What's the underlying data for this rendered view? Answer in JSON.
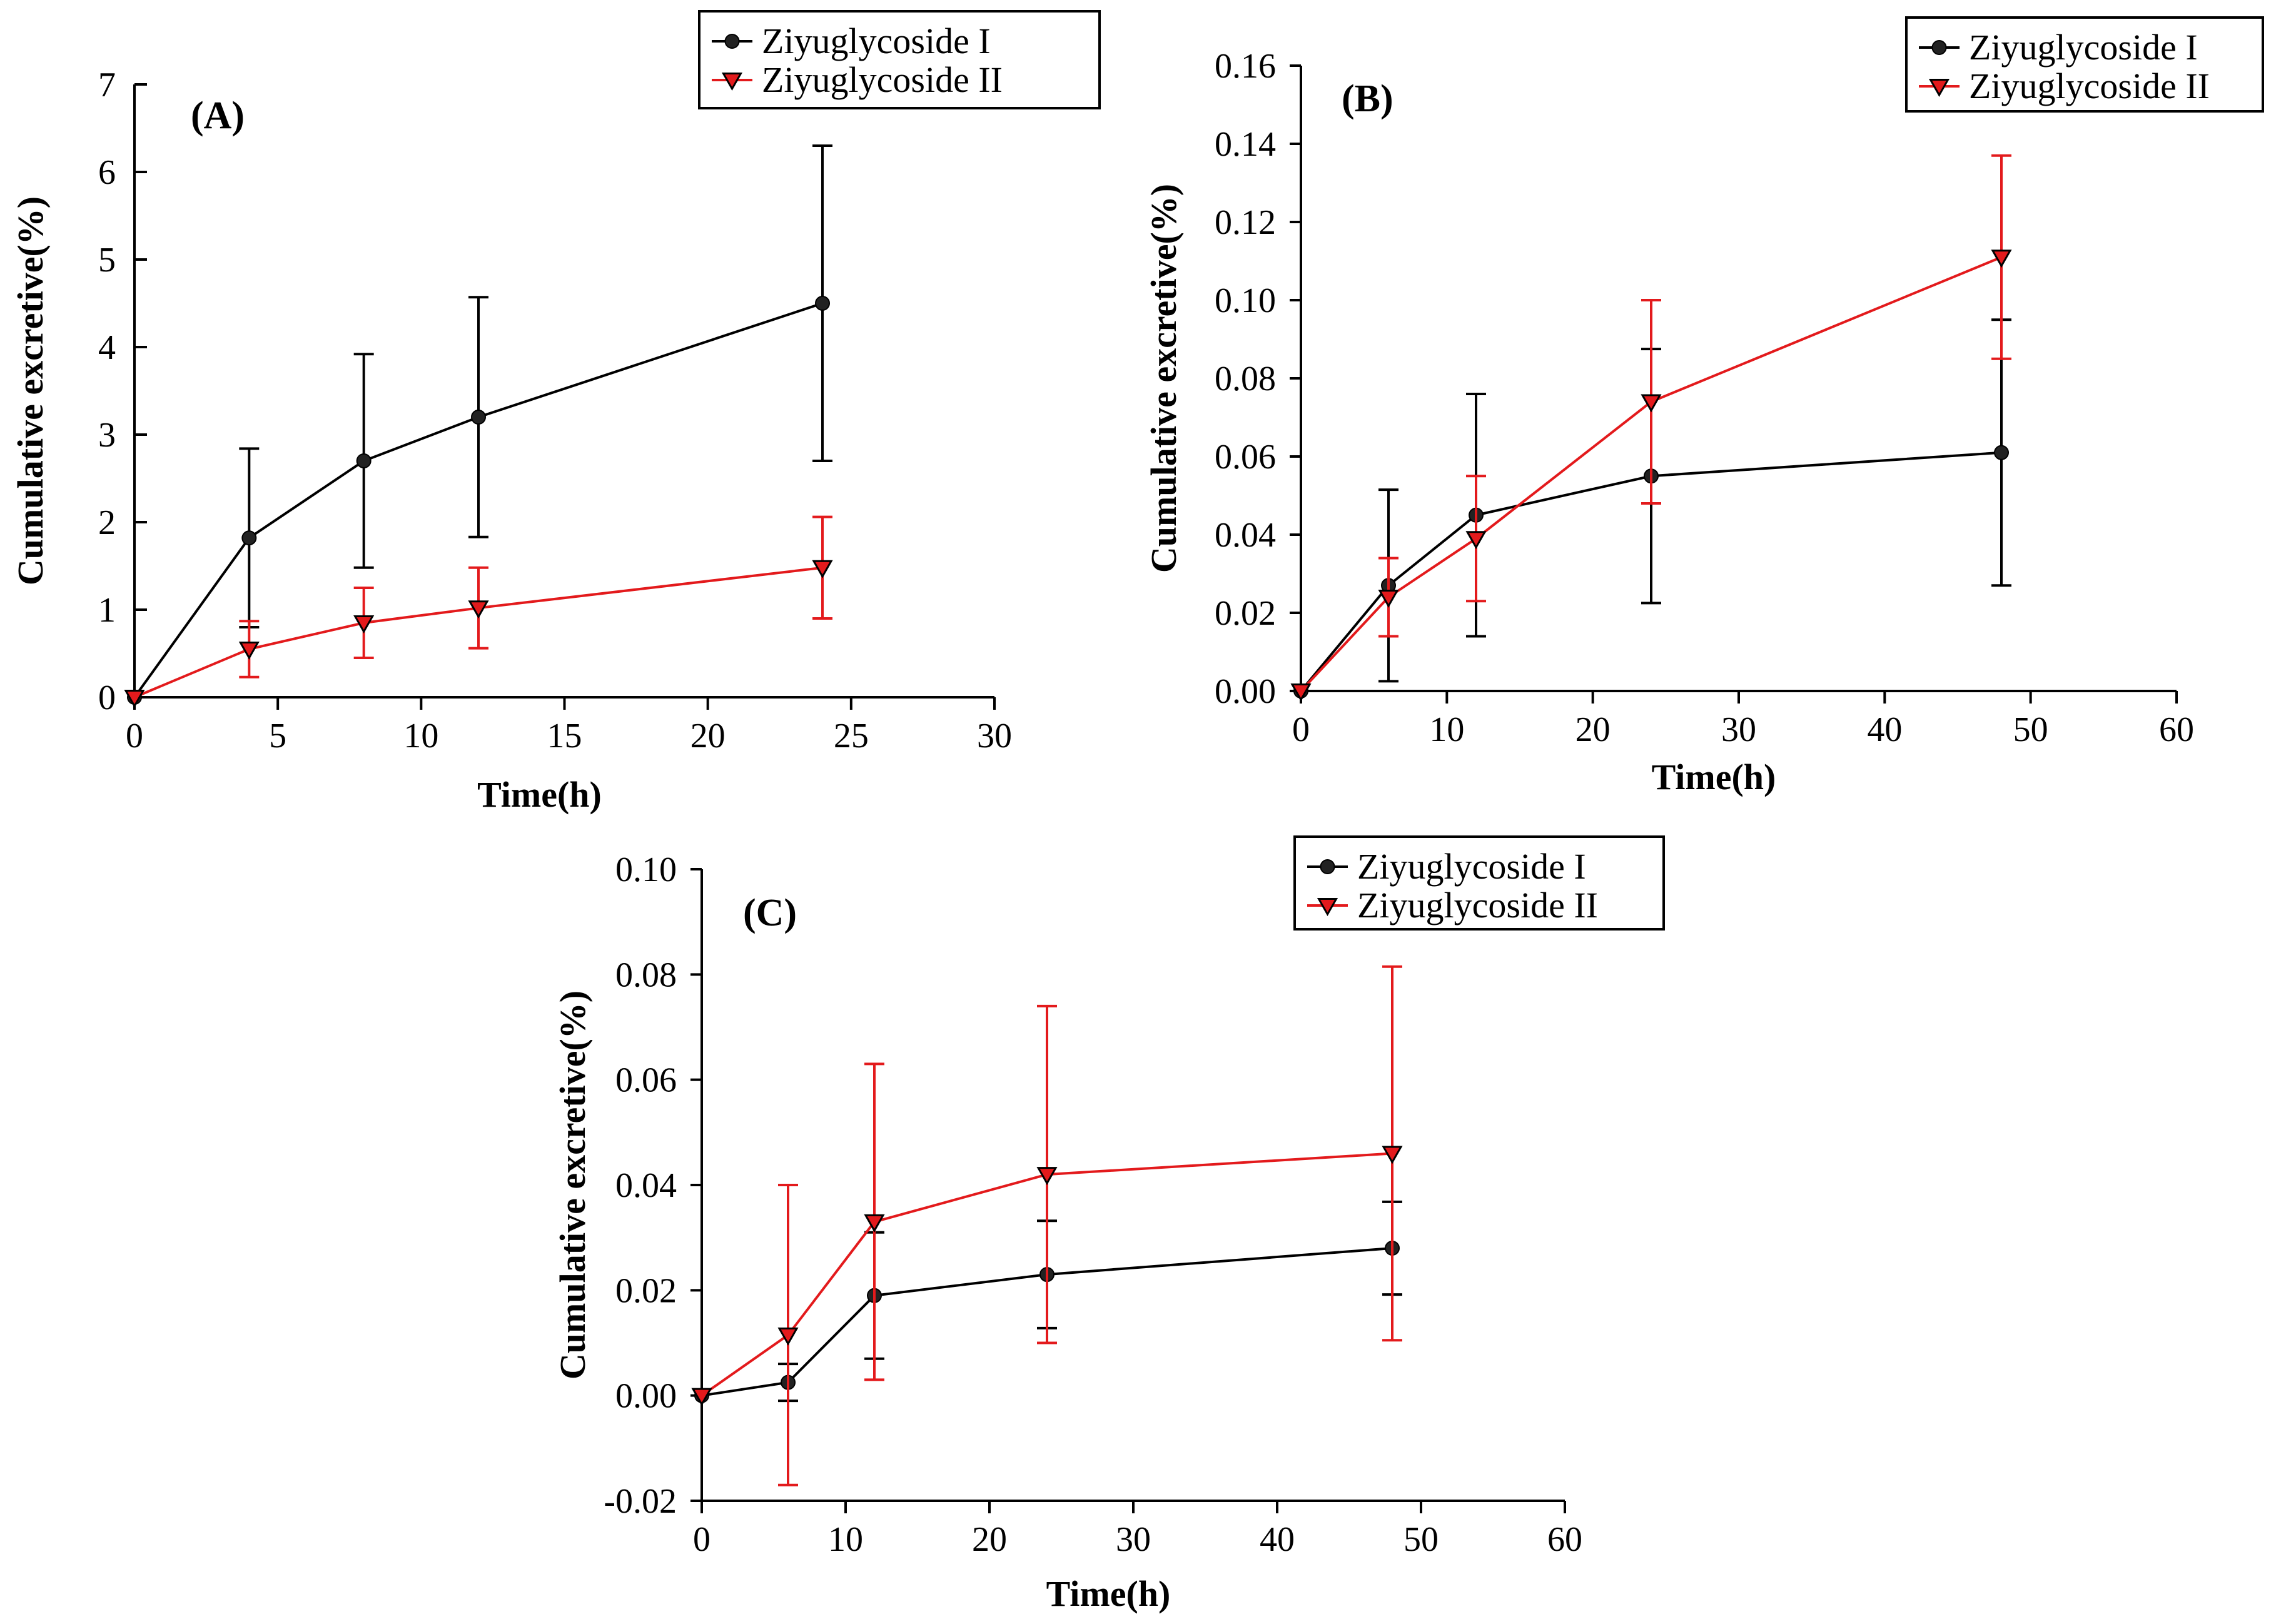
{
  "colors": {
    "series1": "#000000",
    "series2": "#e31a1c"
  },
  "chart_data": [
    {
      "type": "line",
      "panel_label": "(A)",
      "xlabel": "Time(h)",
      "ylabel": "Cumulative excretive(%)",
      "xlim": [
        0,
        30
      ],
      "ylim": [
        0,
        7
      ],
      "xticks": [
        0,
        5,
        10,
        15,
        20,
        25,
        30
      ],
      "yticks": [
        0,
        1,
        2,
        3,
        4,
        5,
        6,
        7
      ],
      "ytick_labels": [
        "0",
        "1",
        "2",
        "3",
        "4",
        "5",
        "6",
        "7"
      ],
      "legend": [
        "Ziyuglycoside I",
        "Ziyuglycoside II"
      ],
      "series": [
        {
          "name": "Ziyuglycoside I",
          "color": "#000000",
          "marker": "circle",
          "x": [
            0,
            4,
            8,
            12,
            24
          ],
          "y": [
            0,
            1.82,
            2.7,
            3.2,
            4.5
          ],
          "err": [
            0,
            1.02,
            1.22,
            1.37,
            1.8
          ]
        },
        {
          "name": "Ziyuglycoside II",
          "color": "#e31a1c",
          "marker": "triangle-down",
          "x": [
            0,
            4,
            8,
            12,
            24
          ],
          "y": [
            0,
            0.55,
            0.85,
            1.02,
            1.48
          ],
          "err": [
            0,
            0.32,
            0.4,
            0.46,
            0.58
          ]
        }
      ]
    },
    {
      "type": "line",
      "panel_label": "(B)",
      "xlabel": "Time(h)",
      "ylabel": "Cumulative excretive(%)",
      "xlim": [
        0,
        60
      ],
      "ylim": [
        0,
        0.16
      ],
      "xticks": [
        0,
        10,
        20,
        30,
        40,
        50,
        60
      ],
      "yticks": [
        0,
        0.02,
        0.04,
        0.06,
        0.08,
        0.1,
        0.12,
        0.14,
        0.16
      ],
      "ytick_labels": [
        "0.00",
        "0.02",
        "0.04",
        "0.06",
        "0.08",
        "0.10",
        "0.12",
        "0.14",
        "0.16"
      ],
      "legend": [
        "Ziyuglycoside I",
        "Ziyuglycoside II"
      ],
      "series": [
        {
          "name": "Ziyuglycoside I",
          "color": "#000000",
          "marker": "circle",
          "x": [
            0,
            6,
            12,
            24,
            48
          ],
          "y": [
            0,
            0.027,
            0.045,
            0.055,
            0.061
          ],
          "err": [
            0,
            0.0245,
            0.031,
            0.0325,
            0.034
          ]
        },
        {
          "name": "Ziyuglycoside II",
          "color": "#e31a1c",
          "marker": "triangle-down",
          "x": [
            0,
            6,
            12,
            24,
            48
          ],
          "y": [
            0,
            0.024,
            0.039,
            0.074,
            0.111
          ],
          "err": [
            0,
            0.01,
            0.016,
            0.026,
            0.026
          ]
        }
      ]
    },
    {
      "type": "line",
      "panel_label": "(C)",
      "xlabel": "Time(h)",
      "ylabel": "Cumulative excretive(%)",
      "xlim": [
        0,
        60
      ],
      "ylim": [
        -0.02,
        0.1
      ],
      "xticks": [
        0,
        10,
        20,
        30,
        40,
        50,
        60
      ],
      "yticks": [
        -0.02,
        0,
        0.02,
        0.04,
        0.06,
        0.08,
        0.1
      ],
      "ytick_labels": [
        "-0.02",
        "0.00",
        "0.02",
        "0.04",
        "0.06",
        "0.08",
        "0.10"
      ],
      "legend": [
        "Ziyuglycoside I",
        "Ziyuglycoside II"
      ],
      "series": [
        {
          "name": "Ziyuglycoside I",
          "color": "#000000",
          "marker": "circle",
          "x": [
            0,
            6,
            12,
            24,
            48
          ],
          "y": [
            0,
            0.0025,
            0.019,
            0.023,
            0.028
          ],
          "err": [
            0,
            0.0035,
            0.012,
            0.0102,
            0.0088
          ]
        },
        {
          "name": "Ziyuglycoside II",
          "color": "#e31a1c",
          "marker": "triangle-down",
          "x": [
            0,
            6,
            12,
            24,
            48
          ],
          "y": [
            0,
            0.0115,
            0.033,
            0.042,
            0.046
          ],
          "err": [
            0,
            0.0285,
            0.03,
            0.032,
            0.0355
          ]
        }
      ]
    }
  ]
}
